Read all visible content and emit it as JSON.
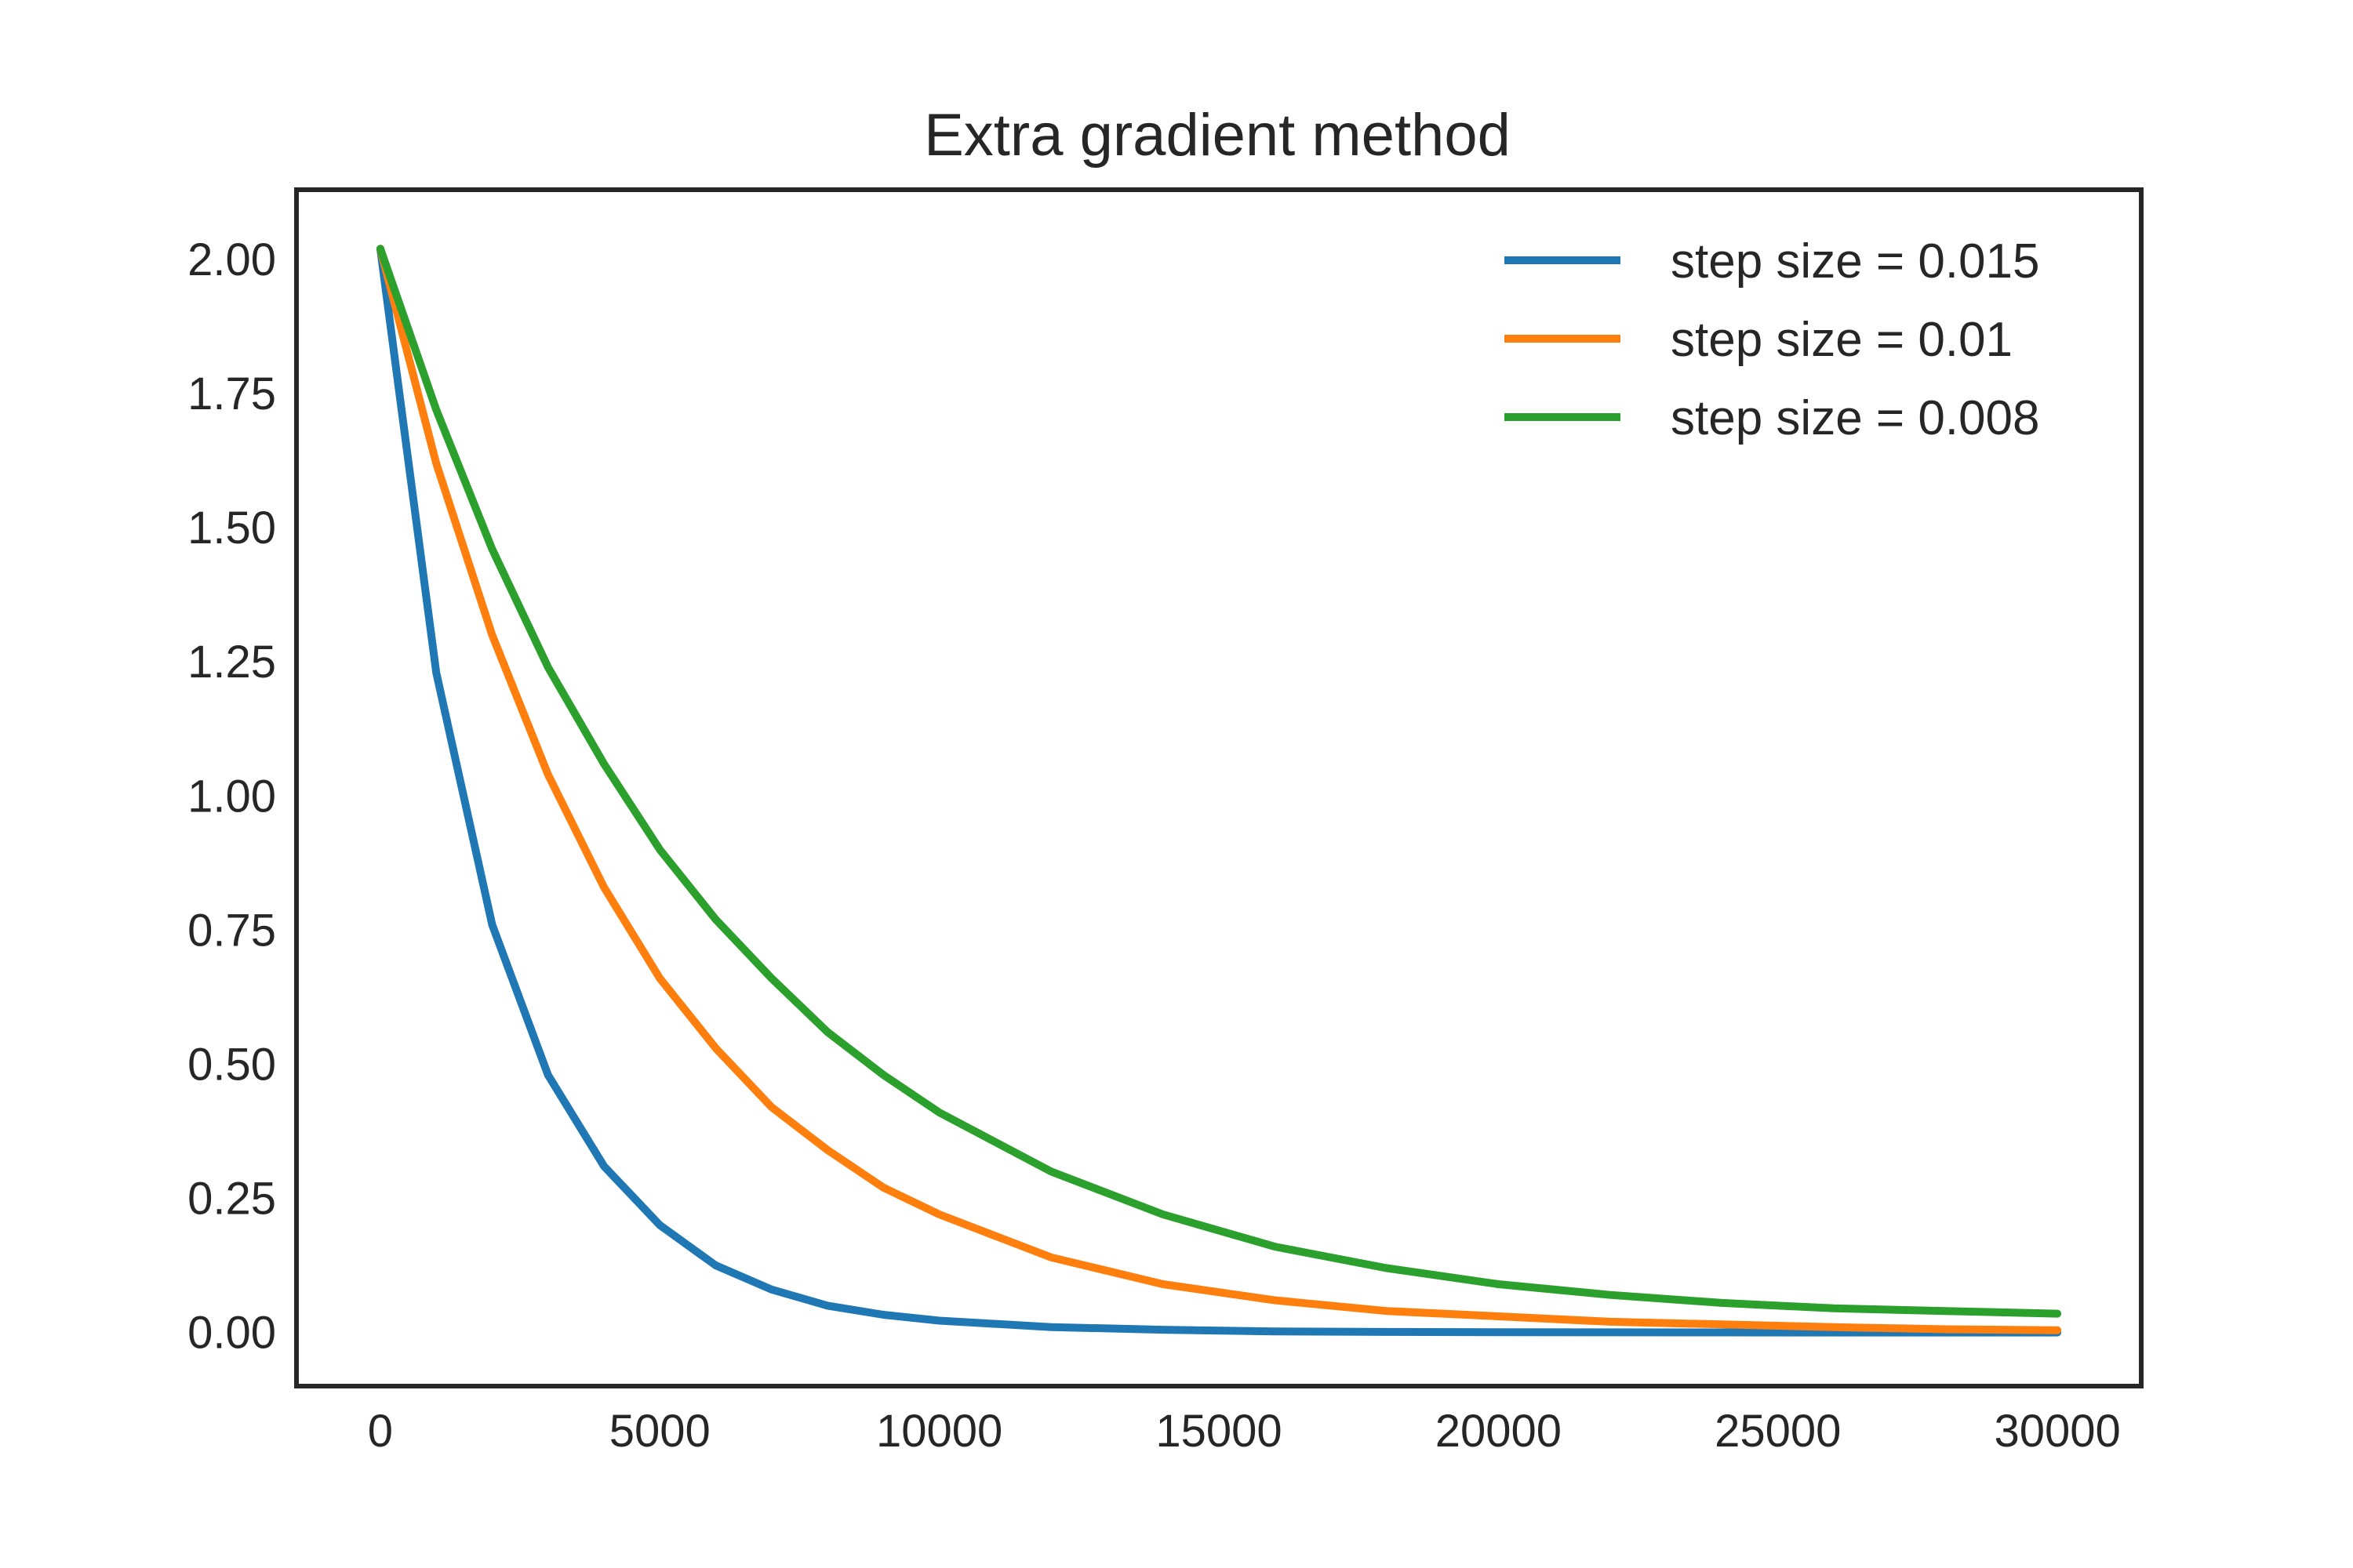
{
  "chart_data": {
    "type": "line",
    "title": "Extra gradient method",
    "xlabel": "",
    "ylabel": "",
    "xlim": [
      -1500,
      31500
    ],
    "ylim": [
      -0.1,
      2.13
    ],
    "xticks": [
      0,
      5000,
      10000,
      15000,
      20000,
      25000,
      30000
    ],
    "xtick_labels": [
      "0",
      "5000",
      "10000",
      "15000",
      "20000",
      "25000",
      "30000"
    ],
    "yticks": [
      0.0,
      0.25,
      0.5,
      0.75,
      1.0,
      1.25,
      1.5,
      1.75,
      2.0
    ],
    "ytick_labels": [
      "0.00",
      "0.25",
      "0.50",
      "0.75",
      "1.00",
      "1.25",
      "1.50",
      "1.75",
      "2.00"
    ],
    "grid": false,
    "legend_position": "top-right",
    "x": [
      0,
      1000,
      2000,
      3000,
      4000,
      5000,
      6000,
      7000,
      8000,
      9000,
      10000,
      12000,
      14000,
      16000,
      18000,
      20000,
      22000,
      24000,
      26000,
      28000,
      30000
    ],
    "series": [
      {
        "name": "step size = 0.015",
        "color": "#1f77b4",
        "values": [
          2.02,
          1.23,
          0.76,
          0.48,
          0.31,
          0.2,
          0.125,
          0.08,
          0.05,
          0.033,
          0.022,
          0.01,
          0.005,
          0.002,
          0.001,
          0.0005,
          0.0002,
          0.0001,
          0.0,
          0.0,
          0.0
        ]
      },
      {
        "name": "step size = 0.01",
        "color": "#ff7f0e",
        "values": [
          2.02,
          1.62,
          1.3,
          1.04,
          0.83,
          0.66,
          0.53,
          0.42,
          0.34,
          0.27,
          0.22,
          0.14,
          0.09,
          0.06,
          0.04,
          0.03,
          0.02,
          0.015,
          0.01,
          0.006,
          0.004
        ]
      },
      {
        "name": "step size = 0.008",
        "color": "#2ca02c",
        "values": [
          2.02,
          1.72,
          1.46,
          1.24,
          1.06,
          0.9,
          0.77,
          0.66,
          0.56,
          0.48,
          0.41,
          0.3,
          0.22,
          0.16,
          0.12,
          0.09,
          0.07,
          0.055,
          0.045,
          0.04,
          0.035
        ]
      }
    ]
  }
}
